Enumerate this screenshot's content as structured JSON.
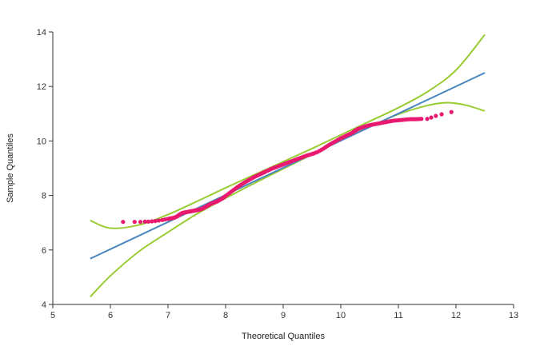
{
  "chart_data": {
    "type": "scatter",
    "title": "",
    "xlabel": "Theoretical Quantiles",
    "ylabel": "Sample Quantiles",
    "xlim": [
      5,
      13
    ],
    "ylim": [
      4,
      14
    ],
    "x_ticks": [
      5,
      6,
      7,
      8,
      9,
      10,
      11,
      12,
      13
    ],
    "y_ticks": [
      4,
      6,
      8,
      10,
      12,
      14
    ],
    "grid": false,
    "legend": "none",
    "colors": {
      "points": "#e8196f",
      "reference_line": "#4a86c0",
      "confidence_band": "#99cc33",
      "axis": "#333333"
    },
    "reference_line": {
      "x": [
        5.65,
        12.5
      ],
      "y": [
        5.68,
        12.5
      ]
    },
    "confidence_band_upper": {
      "x": [
        5.65,
        6.0,
        6.5,
        7.0,
        7.5,
        8.0,
        8.5,
        9.0,
        9.5,
        10.0,
        10.5,
        11.0,
        11.5,
        12.0,
        12.5
      ],
      "y": [
        7.08,
        6.8,
        6.92,
        7.3,
        7.78,
        8.28,
        8.76,
        9.24,
        9.72,
        10.22,
        10.72,
        11.22,
        11.8,
        12.6,
        13.9
      ]
    },
    "confidence_band_lower": {
      "x": [
        5.65,
        6.0,
        6.5,
        7.0,
        7.5,
        8.0,
        8.5,
        9.0,
        9.5,
        10.0,
        10.5,
        11.0,
        11.5,
        11.8,
        12.0,
        12.2,
        12.5
      ],
      "y": [
        4.28,
        5.05,
        5.95,
        6.65,
        7.32,
        7.9,
        8.45,
        8.98,
        9.5,
        10.02,
        10.52,
        10.98,
        11.3,
        11.4,
        11.38,
        11.3,
        11.1
      ]
    },
    "series": [
      {
        "x": [
          6.22,
          6.42,
          6.52,
          6.6,
          6.66,
          6.72,
          6.78,
          6.84,
          6.9,
          6.95,
          7.0,
          7.05,
          7.1,
          7.15,
          7.2,
          7.25,
          7.3,
          7.35,
          7.4,
          7.45,
          7.5,
          7.55,
          7.6,
          7.65,
          7.7,
          7.75,
          7.8,
          7.85,
          7.9,
          7.95,
          8.0,
          8.1,
          8.2,
          8.3,
          8.4,
          8.5,
          8.6,
          8.7,
          8.8,
          8.9,
          9.0,
          9.1,
          9.2,
          9.3,
          9.4,
          9.5,
          9.6,
          9.7,
          9.8,
          9.9,
          10.0,
          10.1,
          10.2,
          10.25,
          10.3,
          10.4,
          10.5,
          10.6,
          10.7,
          10.8,
          10.9,
          11.0,
          11.1,
          11.2,
          11.3,
          11.4,
          11.5,
          11.57,
          11.65,
          11.75,
          11.92
        ],
        "y": [
          7.03,
          7.03,
          7.03,
          7.04,
          7.04,
          7.05,
          7.06,
          7.08,
          7.1,
          7.12,
          7.14,
          7.16,
          7.18,
          7.22,
          7.3,
          7.36,
          7.38,
          7.4,
          7.42,
          7.44,
          7.46,
          7.48,
          7.52,
          7.58,
          7.64,
          7.7,
          7.74,
          7.78,
          7.84,
          7.9,
          7.98,
          8.14,
          8.3,
          8.44,
          8.56,
          8.68,
          8.78,
          8.88,
          8.98,
          9.06,
          9.14,
          9.22,
          9.3,
          9.38,
          9.46,
          9.52,
          9.6,
          9.72,
          9.86,
          9.98,
          10.1,
          10.2,
          10.3,
          10.38,
          10.44,
          10.52,
          10.58,
          10.62,
          10.66,
          10.7,
          10.74,
          10.76,
          10.78,
          10.8,
          10.8,
          10.81,
          10.81,
          10.86,
          10.92,
          10.98,
          11.06
        ]
      }
    ]
  }
}
